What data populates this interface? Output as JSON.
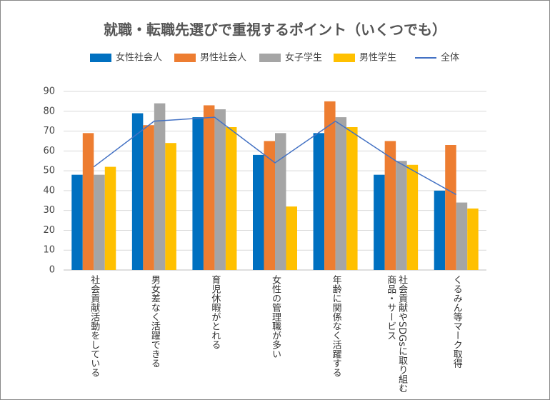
{
  "chart_data": {
    "type": "bar",
    "title": "就職・転職先選びで重視するポイント（いくつでも）",
    "categories": [
      "社会貢献活動をしている",
      "男女差なく活躍できる",
      "育児休暇がとれる",
      "女性の管理職が多い",
      "年齢に関係なく活躍する",
      "社会貢献やSDGsに取り組む\n商品・サービス",
      "くるみん等マーク取得"
    ],
    "series": [
      {
        "name": "女性社会人",
        "color": "#0070c0",
        "values": [
          48,
          79,
          77,
          58,
          69,
          48,
          40
        ]
      },
      {
        "name": "男性社会人",
        "color": "#ed7d31",
        "values": [
          69,
          73,
          83,
          65,
          85,
          65,
          63
        ]
      },
      {
        "name": "女子学生",
        "color": "#a5a5a5",
        "values": [
          48,
          84,
          81,
          69,
          77,
          55,
          34
        ]
      },
      {
        "name": "男性学生",
        "color": "#ffc000",
        "values": [
          52,
          64,
          72,
          32,
          72,
          53,
          31
        ]
      },
      {
        "name": "全体",
        "color": "#4472c4",
        "type": "line",
        "values": [
          52,
          75,
          77,
          54,
          75,
          55,
          38
        ]
      }
    ],
    "ylim": [
      0,
      90
    ],
    "yticks": [
      0,
      10,
      20,
      30,
      40,
      50,
      60,
      70,
      80,
      90
    ],
    "grid": true
  }
}
